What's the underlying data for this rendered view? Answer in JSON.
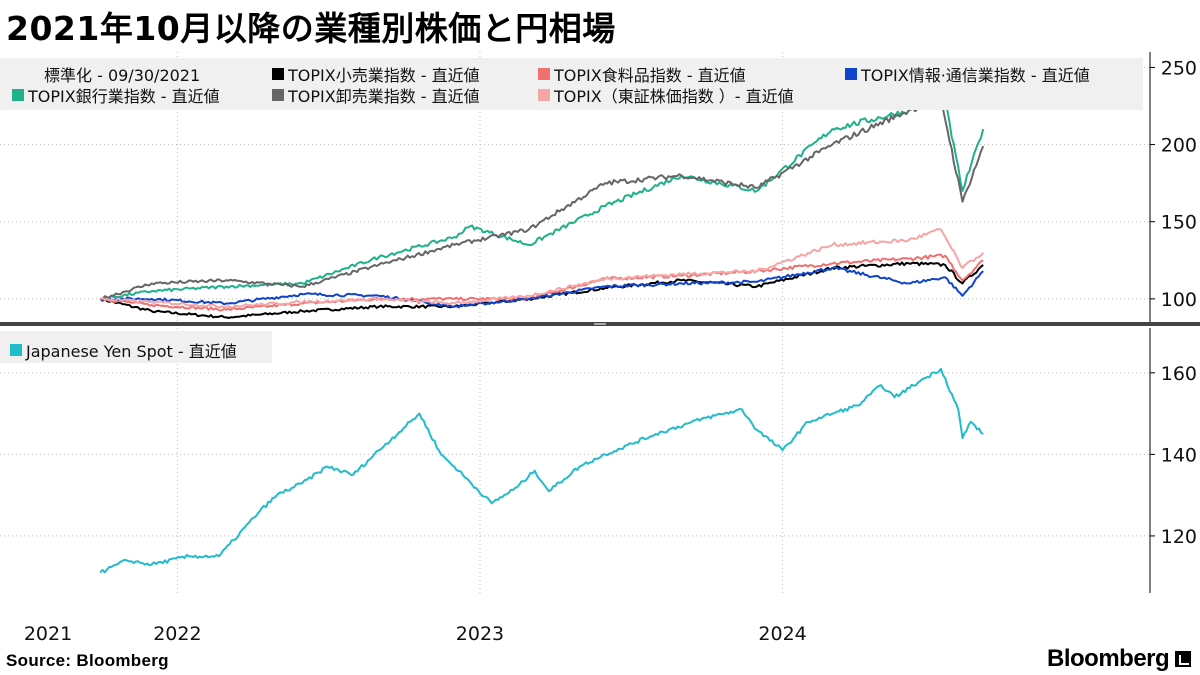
{
  "title": "2021年10月以降の業種別株価と円相場",
  "source": "Source:  Bloomberg",
  "brand": "Bloomberg",
  "legend_top_note": "標準化  - 09/30/2021",
  "chart_data": [
    {
      "type": "line",
      "x_ticks": [
        "2021",
        "2022",
        "2023",
        "2024"
      ],
      "ylim": [
        85,
        260
      ],
      "yticks": [
        100,
        150,
        200,
        250
      ],
      "grid": true,
      "legend": "top",
      "series": [
        {
          "name": "TOPIX小売業指数  - 直近値",
          "color": "#000000",
          "x": [
            "2021-09-30",
            "2021-12-01",
            "2022-03-01",
            "2022-06-01",
            "2022-09-01",
            "2022-12-01",
            "2023-03-01",
            "2023-06-01",
            "2023-09-01",
            "2023-12-01",
            "2024-03-01",
            "2024-06-01",
            "2024-07-15",
            "2024-08-05",
            "2024-08-30"
          ],
          "values": [
            100,
            92,
            88,
            92,
            95,
            95,
            100,
            107,
            112,
            108,
            120,
            123,
            122,
            110,
            122
          ]
        },
        {
          "name": "TOPIX食料品指数  - 直近値",
          "color": "#f07070",
          "x": [
            "2021-09-30",
            "2021-12-01",
            "2022-03-01",
            "2022-06-01",
            "2022-09-01",
            "2022-12-01",
            "2023-03-01",
            "2023-06-01",
            "2023-09-01",
            "2023-12-01",
            "2024-03-01",
            "2024-06-01",
            "2024-07-15",
            "2024-08-05",
            "2024-08-30"
          ],
          "values": [
            100,
            96,
            93,
            97,
            100,
            100,
            100,
            113,
            115,
            118,
            123,
            126,
            128,
            112,
            125
          ]
        },
        {
          "name": "TOPIX情報·通信業指数  - 直近値",
          "color": "#1144cc",
          "x": [
            "2021-09-30",
            "2021-12-01",
            "2022-03-01",
            "2022-06-01",
            "2022-09-01",
            "2022-12-01",
            "2023-03-01",
            "2023-06-01",
            "2023-09-01",
            "2023-12-01",
            "2024-03-01",
            "2024-06-01",
            "2024-07-15",
            "2024-08-05",
            "2024-08-30"
          ],
          "values": [
            100,
            100,
            97,
            103,
            102,
            95,
            100,
            108,
            110,
            111,
            120,
            110,
            114,
            102,
            118
          ]
        },
        {
          "name": "TOPIX銀行業指数  - 直近値",
          "color": "#20b08a",
          "x": [
            "2021-09-30",
            "2021-12-01",
            "2022-03-01",
            "2022-06-01",
            "2022-09-01",
            "2022-12-01",
            "2022-12-20",
            "2023-03-01",
            "2023-06-01",
            "2023-09-01",
            "2023-12-01",
            "2024-03-01",
            "2024-06-01",
            "2024-07-10",
            "2024-08-05",
            "2024-08-30"
          ],
          "values": [
            100,
            105,
            108,
            110,
            127,
            140,
            147,
            135,
            160,
            180,
            170,
            210,
            222,
            242,
            170,
            210
          ]
        },
        {
          "name": "TOPIX卸売業指数  - 直近値",
          "color": "#666666",
          "x": [
            "2021-09-30",
            "2021-12-01",
            "2022-03-01",
            "2022-06-01",
            "2022-09-01",
            "2022-12-01",
            "2023-03-01",
            "2023-06-01",
            "2023-09-01",
            "2023-12-01",
            "2024-03-01",
            "2024-06-01",
            "2024-07-10",
            "2024-08-05",
            "2024-08-30"
          ],
          "values": [
            100,
            110,
            112,
            108,
            122,
            135,
            145,
            175,
            180,
            172,
            200,
            222,
            230,
            163,
            199
          ]
        },
        {
          "name": "TOPIX（東証株価指数 ）- 直近値",
          "color": "#f5a5a5",
          "x": [
            "2021-09-30",
            "2021-12-01",
            "2022-03-01",
            "2022-06-01",
            "2022-09-01",
            "2022-12-01",
            "2023-03-01",
            "2023-06-01",
            "2023-09-01",
            "2023-12-01",
            "2024-03-01",
            "2024-06-01",
            "2024-07-10",
            "2024-08-05",
            "2024-08-30"
          ],
          "values": [
            100,
            98,
            95,
            98,
            100,
            97,
            102,
            113,
            116,
            118,
            135,
            138,
            145,
            120,
            130
          ]
        }
      ]
    },
    {
      "type": "line",
      "x_ticks": [
        "2021",
        "2022",
        "2023",
        "2024"
      ],
      "ylim": [
        106,
        171
      ],
      "yticks": [
        120,
        140,
        160
      ],
      "grid": true,
      "legend": "top-left",
      "series": [
        {
          "name": "Japanese Yen Spot - 直近値",
          "color": "#22bbcc",
          "x": [
            "2021-09-30",
            "2021-11-01",
            "2021-12-01",
            "2022-01-15",
            "2022-02-20",
            "2022-03-10",
            "2022-04-10",
            "2022-05-01",
            "2022-06-01",
            "2022-07-01",
            "2022-08-01",
            "2022-09-01",
            "2022-10-20",
            "2022-11-15",
            "2022-12-01",
            "2023-01-15",
            "2023-02-15",
            "2023-03-08",
            "2023-03-25",
            "2023-05-01",
            "2023-06-01",
            "2023-08-01",
            "2023-10-01",
            "2023-11-13",
            "2023-12-01",
            "2024-01-01",
            "2024-02-01",
            "2024-03-01",
            "2024-04-01",
            "2024-04-29",
            "2024-05-15",
            "2024-06-15",
            "2024-07-10",
            "2024-07-31",
            "2024-08-05",
            "2024-08-15",
            "2024-08-30"
          ],
          "values": [
            111,
            114,
            113,
            115,
            115,
            119,
            126,
            130,
            133,
            137,
            135,
            141,
            150,
            140,
            137,
            128,
            132,
            136,
            131,
            137,
            140,
            145,
            149,
            151,
            146,
            141,
            148,
            150,
            152,
            157,
            154,
            158,
            161,
            151,
            144,
            148,
            145
          ]
        }
      ]
    }
  ],
  "x_ticks": [
    "2021",
    "2022",
    "2023",
    "2024"
  ]
}
